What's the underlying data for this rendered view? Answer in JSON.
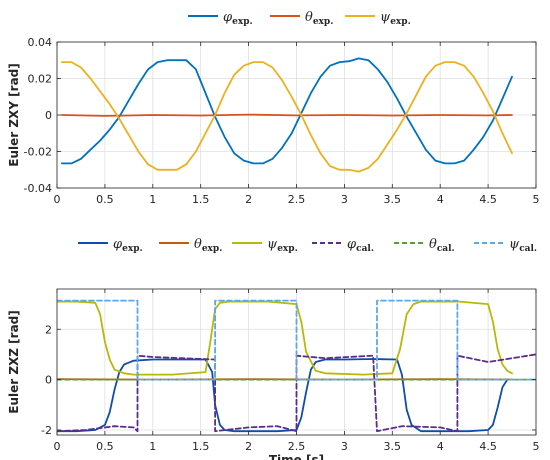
{
  "chart_data": [
    {
      "type": "line",
      "ylabel": "Euler ZXY [rad]",
      "xlabel": "",
      "xlim": [
        0,
        5
      ],
      "ylim": [
        -0.04,
        0.04
      ],
      "xticks": [
        0,
        0.5,
        1,
        1.5,
        2,
        2.5,
        3,
        3.5,
        4,
        4.5,
        5
      ],
      "xtick_labels": [
        "0",
        "0.5",
        "1",
        "1.5",
        "2",
        "2.5",
        "3",
        "3.5",
        "4",
        "4.5",
        "5"
      ],
      "yticks": [
        -0.04,
        -0.02,
        0,
        0.02,
        0.04
      ],
      "ytick_labels": [
        "-0.04",
        "-0.02",
        "0",
        "0.02",
        "0.04"
      ],
      "grid": true,
      "legend_position": "top-center",
      "series": [
        {
          "name": "φ",
          "sub": "exp.",
          "color": "#0072bd",
          "dash": "solid",
          "x": [
            0.05,
            0.15,
            0.25,
            0.35,
            0.45,
            0.55,
            0.65,
            0.75,
            0.85,
            0.95,
            1.05,
            1.15,
            1.25,
            1.35,
            1.45,
            1.55,
            1.65,
            1.75,
            1.85,
            1.95,
            2.05,
            2.15,
            2.25,
            2.35,
            2.45,
            2.55,
            2.65,
            2.75,
            2.85,
            2.95,
            3.05,
            3.15,
            3.25,
            3.35,
            3.45,
            3.55,
            3.65,
            3.75,
            3.85,
            3.95,
            4.05,
            4.15,
            4.25,
            4.35,
            4.45,
            4.55,
            4.65,
            4.75
          ],
          "y": [
            -0.0265,
            -0.0265,
            -0.024,
            -0.019,
            -0.014,
            -0.008,
            -0.001,
            0.008,
            0.017,
            0.025,
            0.029,
            0.03,
            0.03,
            0.03,
            0.025,
            0.012,
            -0.001,
            -0.012,
            -0.021,
            -0.025,
            -0.0265,
            -0.0265,
            -0.024,
            -0.018,
            -0.01,
            0.001,
            0.012,
            0.021,
            0.027,
            0.029,
            0.0295,
            0.031,
            0.03,
            0.025,
            0.018,
            0.009,
            -0.001,
            -0.01,
            -0.019,
            -0.025,
            -0.0265,
            -0.0265,
            -0.025,
            -0.019,
            -0.012,
            -0.003,
            0.009,
            0.021
          ]
        },
        {
          "name": "θ",
          "sub": "exp.",
          "color": "#d95319",
          "dash": "solid",
          "x": [
            0.05,
            0.5,
            1.0,
            1.5,
            2.0,
            2.5,
            3.0,
            3.5,
            4.0,
            4.5,
            4.75
          ],
          "y": [
            0.0,
            -0.0005,
            0.0,
            -0.0003,
            0.0002,
            -0.0002,
            0.0,
            -0.0003,
            0.0,
            -0.0002,
            0.0
          ]
        },
        {
          "name": "ψ",
          "sub": "exp.",
          "color": "#edb120",
          "dash": "solid",
          "x": [
            0.05,
            0.15,
            0.25,
            0.35,
            0.45,
            0.55,
            0.65,
            0.75,
            0.85,
            0.95,
            1.05,
            1.15,
            1.25,
            1.35,
            1.45,
            1.55,
            1.65,
            1.75,
            1.85,
            1.95,
            2.05,
            2.15,
            2.25,
            2.35,
            2.45,
            2.55,
            2.65,
            2.75,
            2.85,
            2.95,
            3.05,
            3.15,
            3.25,
            3.35,
            3.45,
            3.55,
            3.65,
            3.75,
            3.85,
            3.95,
            4.05,
            4.15,
            4.25,
            4.35,
            4.45,
            4.55,
            4.65,
            4.75
          ],
          "y": [
            0.029,
            0.029,
            0.026,
            0.02,
            0.013,
            0.006,
            -0.002,
            -0.011,
            -0.02,
            -0.027,
            -0.03,
            -0.03,
            -0.03,
            -0.027,
            -0.02,
            -0.01,
            0.0,
            0.012,
            0.022,
            0.027,
            0.029,
            0.029,
            0.026,
            0.019,
            0.01,
            0.0,
            -0.011,
            -0.021,
            -0.028,
            -0.03,
            -0.03,
            -0.031,
            -0.029,
            -0.024,
            -0.016,
            -0.008,
            0.001,
            0.011,
            0.021,
            0.027,
            0.029,
            0.029,
            0.027,
            0.021,
            0.012,
            0.002,
            -0.01,
            -0.021
          ]
        }
      ]
    },
    {
      "type": "line",
      "ylabel": "Euler ZXZ [rad]",
      "xlabel": "Time [s]",
      "xlim": [
        0,
        5
      ],
      "ylim": [
        -2.2,
        3.6
      ],
      "xticks": [
        0,
        0.5,
        1,
        1.5,
        2,
        2.5,
        3,
        3.5,
        4,
        4.5,
        5
      ],
      "xtick_labels": [
        "0",
        "0.5",
        "1",
        "1.5",
        "2",
        "2.5",
        "3",
        "3.5",
        "4",
        "4.5",
        "5"
      ],
      "yticks": [
        -2,
        0,
        2
      ],
      "ytick_labels": [
        "-2",
        "0",
        "2"
      ],
      "grid": true,
      "legend_position": "top-center",
      "series": [
        {
          "name": "φ",
          "sub": "exp.",
          "color": "#0f4cad",
          "dash": "solid",
          "x": [
            0.0,
            0.2,
            0.4,
            0.5,
            0.55,
            0.6,
            0.65,
            0.7,
            0.8,
            1.0,
            1.3,
            1.55,
            1.62,
            1.65,
            1.7,
            1.75,
            1.85,
            2.0,
            2.3,
            2.5,
            2.55,
            2.6,
            2.65,
            2.7,
            2.8,
            3.0,
            3.3,
            3.55,
            3.6,
            3.65,
            3.7,
            3.8,
            4.0,
            4.3,
            4.5,
            4.55,
            4.6,
            4.65,
            4.7,
            4.72
          ],
          "y": [
            -2.05,
            -2.05,
            -2.0,
            -1.8,
            -1.3,
            -0.4,
            0.3,
            0.6,
            0.75,
            0.8,
            0.8,
            0.8,
            0.3,
            -1.0,
            -1.8,
            -2.0,
            -2.05,
            -2.05,
            -2.05,
            -2.0,
            -1.5,
            -0.5,
            0.4,
            0.7,
            0.8,
            0.8,
            0.82,
            0.8,
            0.2,
            -1.2,
            -1.8,
            -2.05,
            -2.05,
            -2.05,
            -2.0,
            -1.8,
            -1.1,
            -0.3,
            0.0,
            0.0
          ]
        },
        {
          "name": "θ",
          "sub": "exp.",
          "color": "#c55a11",
          "dash": "solid",
          "x": [
            0.0,
            1.0,
            2.0,
            3.0,
            4.0,
            4.75
          ],
          "y": [
            0.02,
            0.0,
            0.02,
            0.0,
            0.02,
            0.0
          ]
        },
        {
          "name": "ψ",
          "sub": "exp.",
          "color": "#b8b80b",
          "dash": "solid",
          "x": [
            0.0,
            0.2,
            0.4,
            0.45,
            0.5,
            0.55,
            0.6,
            0.7,
            0.8,
            1.2,
            1.55,
            1.6,
            1.65,
            1.7,
            1.8,
            2.2,
            2.5,
            2.55,
            2.6,
            2.7,
            2.8,
            3.2,
            3.5,
            3.58,
            3.65,
            3.72,
            3.8,
            4.2,
            4.5,
            4.55,
            4.6,
            4.65,
            4.7,
            4.75
          ],
          "y": [
            3.1,
            3.1,
            3.05,
            2.6,
            1.5,
            0.8,
            0.4,
            0.25,
            0.2,
            0.2,
            0.3,
            1.5,
            2.8,
            3.05,
            3.1,
            3.1,
            3.0,
            2.3,
            1.1,
            0.35,
            0.25,
            0.2,
            0.25,
            1.2,
            2.6,
            3.0,
            3.1,
            3.1,
            3.0,
            2.3,
            1.2,
            0.6,
            0.35,
            0.25
          ]
        },
        {
          "name": "φ",
          "sub": "cal.",
          "color": "#5b2c8e",
          "dash": "dashed",
          "x": [
            0.0,
            0.3,
            0.6,
            0.8,
            0.84,
            0.84,
            1.0,
            1.3,
            1.65,
            1.65,
            2.0,
            2.3,
            2.5,
            2.5,
            2.8,
            3.3,
            3.34,
            3.34,
            3.6,
            4.0,
            4.18,
            4.18,
            4.5,
            5.0
          ],
          "y": [
            -2.05,
            -2.0,
            -1.85,
            -1.9,
            -2.05,
            0.95,
            0.9,
            0.85,
            0.8,
            -2.05,
            -1.9,
            -1.85,
            -2.05,
            0.95,
            0.85,
            0.95,
            -2.05,
            -2.05,
            -1.85,
            -1.9,
            -2.05,
            0.95,
            0.7,
            1.0
          ]
        },
        {
          "name": "θ",
          "sub": "cal.",
          "color": "#5aa031",
          "dash": "dashed",
          "x": [
            0.0,
            5.0
          ],
          "y": [
            0.0,
            0.0
          ]
        },
        {
          "name": "ψ",
          "sub": "cal.",
          "color": "#5fa8e6",
          "dash": "dashed",
          "x": [
            0.0,
            0.84,
            0.84,
            1.65,
            1.65,
            2.5,
            2.5,
            3.34,
            3.34,
            4.18,
            4.18,
            5.0
          ],
          "y": [
            3.14,
            3.14,
            0.0,
            0.0,
            3.14,
            3.14,
            0.0,
            0.0,
            3.14,
            3.14,
            0.0,
            0.0
          ]
        }
      ]
    }
  ]
}
